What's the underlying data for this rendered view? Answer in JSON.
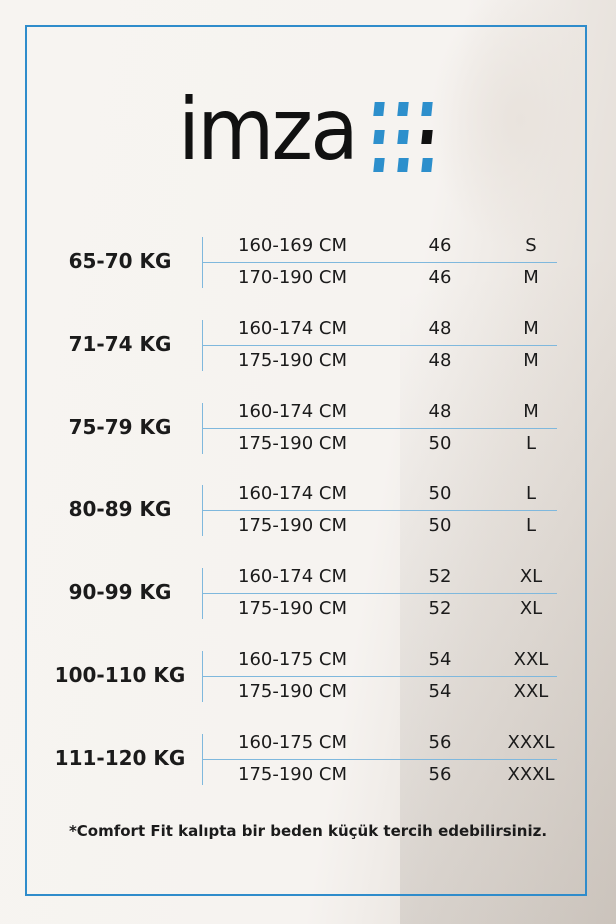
{
  "brand": {
    "logo_text": "imza",
    "colors": {
      "accent": "#2d8fcc",
      "frame": "#2f8ccb",
      "text": "#1b1b1b"
    }
  },
  "groups": [
    {
      "weight": "65-70 KG",
      "rows": [
        {
          "height": "160-169 CM",
          "number": "46",
          "size": "S"
        },
        {
          "height": "170-190 CM",
          "number": "46",
          "size": "M"
        }
      ]
    },
    {
      "weight": "71-74 KG",
      "rows": [
        {
          "height": "160-174 CM",
          "number": "48",
          "size": "M"
        },
        {
          "height": "175-190 CM",
          "number": "48",
          "size": "M"
        }
      ]
    },
    {
      "weight": "75-79 KG",
      "rows": [
        {
          "height": "160-174 CM",
          "number": "48",
          "size": "M"
        },
        {
          "height": "175-190 CM",
          "number": "50",
          "size": "L"
        }
      ]
    },
    {
      "weight": "80-89 KG",
      "rows": [
        {
          "height": "160-174 CM",
          "number": "50",
          "size": "L"
        },
        {
          "height": "175-190 CM",
          "number": "50",
          "size": "L"
        }
      ]
    },
    {
      "weight": "90-99 KG",
      "rows": [
        {
          "height": "160-174 CM",
          "number": "52",
          "size": "XL"
        },
        {
          "height": "175-190 CM",
          "number": "52",
          "size": "XL"
        }
      ]
    },
    {
      "weight": "100-110 KG",
      "rows": [
        {
          "height": "160-175 CM",
          "number": "54",
          "size": "XXL"
        },
        {
          "height": "175-190 CM",
          "number": "54",
          "size": "XXL"
        }
      ]
    },
    {
      "weight": "111-120 KG",
      "rows": [
        {
          "height": "160-175 CM",
          "number": "56",
          "size": "XXXL"
        },
        {
          "height": "175-190 CM",
          "number": "56",
          "size": "XXXL"
        }
      ]
    }
  ],
  "note": "*Comfort Fit kalıpta bir beden küçük tercih edebilirsiniz."
}
